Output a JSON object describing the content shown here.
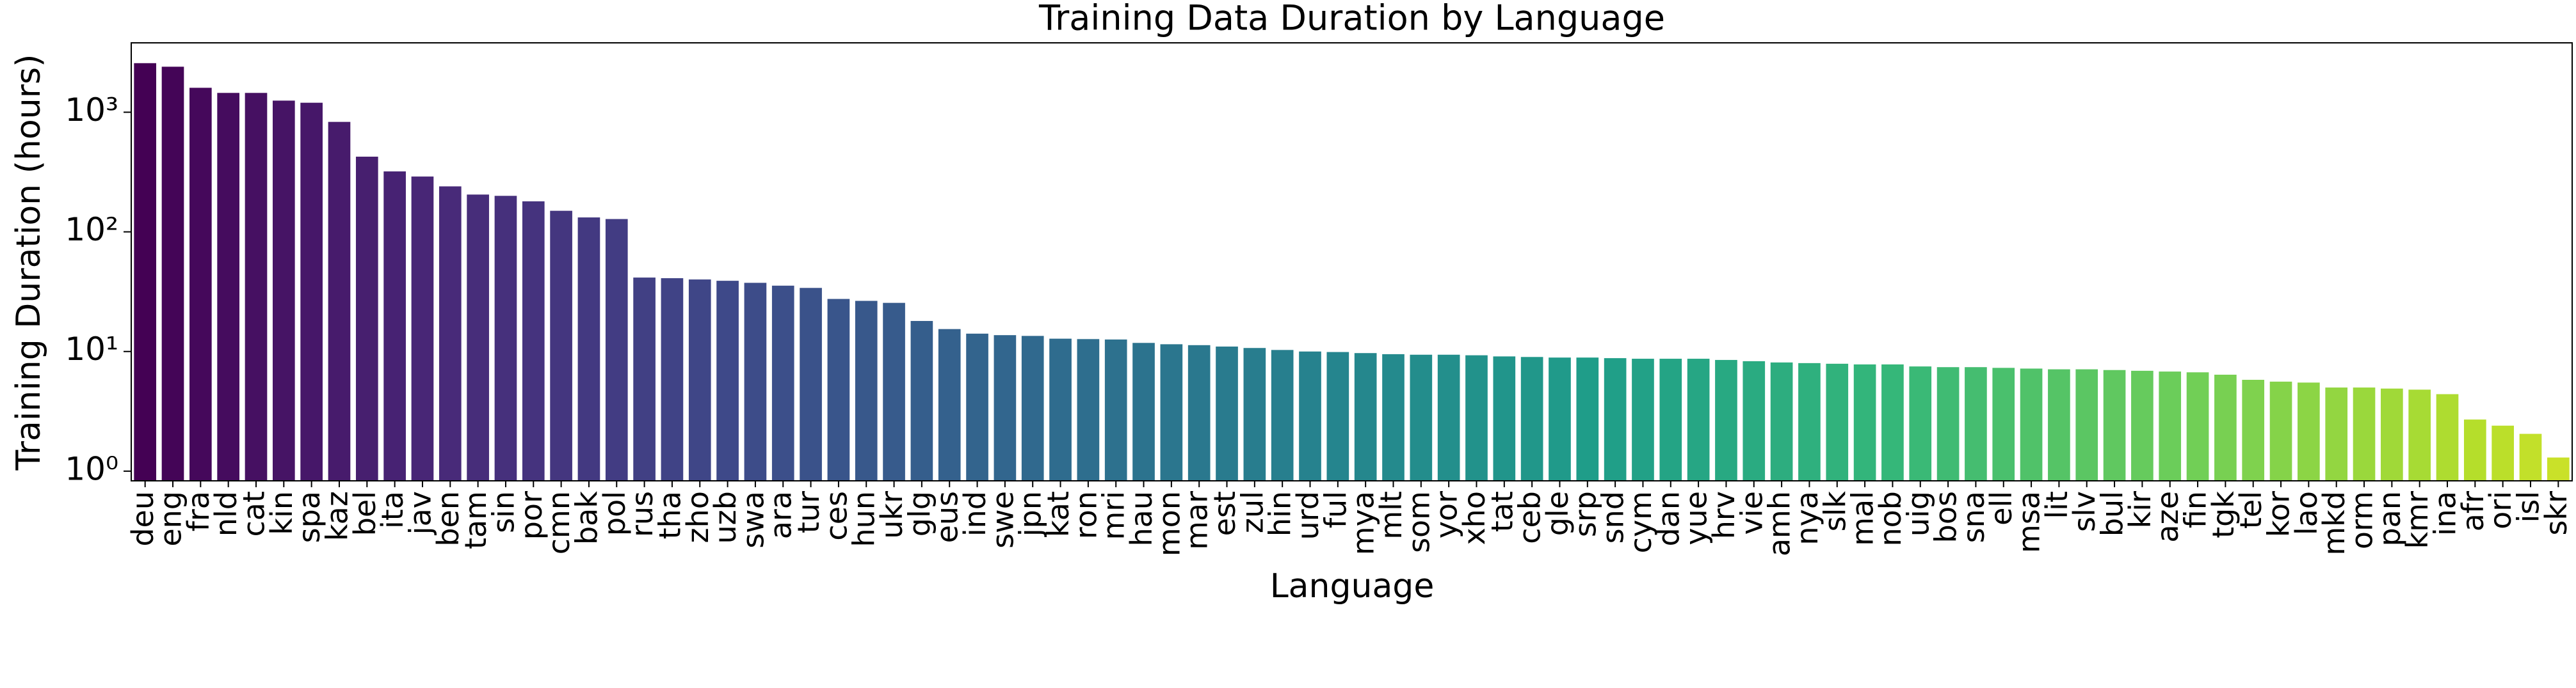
{
  "chart_data": {
    "type": "bar",
    "title": "Training Data Duration by Language",
    "x_label": "Language",
    "y_label": "Training Duration (hours)",
    "y_scale": "log",
    "palette": "viridis",
    "ylim": [
      0.83,
      3800
    ],
    "yticks": [
      {
        "value": 1,
        "label": "10⁰"
      },
      {
        "value": 10,
        "label": "10¹"
      },
      {
        "value": 100,
        "label": "10²"
      },
      {
        "value": 1000,
        "label": "10³"
      }
    ],
    "categories": [
      "deu",
      "eng",
      "fra",
      "nld",
      "cat",
      "kin",
      "spa",
      "kaz",
      "bel",
      "ita",
      "jav",
      "ben",
      "tam",
      "sin",
      "por",
      "cmn",
      "bak",
      "pol",
      "rus",
      "tha",
      "zho",
      "uzb",
      "swa",
      "ara",
      "tur",
      "ces",
      "hun",
      "ukr",
      "glg",
      "eus",
      "ind",
      "swe",
      "jpn",
      "kat",
      "ron",
      "mri",
      "hau",
      "mon",
      "mar",
      "est",
      "zul",
      "hin",
      "urd",
      "ful",
      "mya",
      "mlt",
      "som",
      "yor",
      "xho",
      "tat",
      "ceb",
      "gle",
      "srp",
      "snd",
      "cym",
      "dan",
      "yue",
      "hrv",
      "vie",
      "amh",
      "nya",
      "slk",
      "mal",
      "nob",
      "uig",
      "bos",
      "sna",
      "ell",
      "msa",
      "lit",
      "slv",
      "bul",
      "kir",
      "aze",
      "fin",
      "tgk",
      "tel",
      "kor",
      "lao",
      "mkd",
      "orm",
      "pan",
      "kmr",
      "ina",
      "afr",
      "ori",
      "isl",
      "skr"
    ],
    "values": [
      2570,
      2400,
      1600,
      1450,
      1450,
      1250,
      1200,
      830,
      425,
      320,
      290,
      240,
      205,
      200,
      180,
      150,
      132,
      128,
      41.5,
      41,
      40,
      39,
      37.5,
      35.5,
      34,
      27.5,
      26.5,
      25.5,
      18,
      15.4,
      14.1,
      13.7,
      13.5,
      12.8,
      12.7,
      12.6,
      11.8,
      11.5,
      11.3,
      11,
      10.7,
      10.3,
      10,
      9.9,
      9.7,
      9.5,
      9.4,
      9.4,
      9.3,
      9.1,
      9.0,
      8.9,
      8.9,
      8.8,
      8.7,
      8.7,
      8.7,
      8.5,
      8.3,
      8.1,
      8.0,
      7.9,
      7.8,
      7.8,
      7.5,
      7.4,
      7.4,
      7.3,
      7.2,
      7.1,
      7.1,
      7.0,
      6.9,
      6.8,
      6.7,
      6.4,
      5.8,
      5.6,
      5.5,
      5.0,
      5.0,
      4.9,
      4.8,
      4.4,
      2.7,
      2.4,
      2.05,
      1.3
    ]
  }
}
